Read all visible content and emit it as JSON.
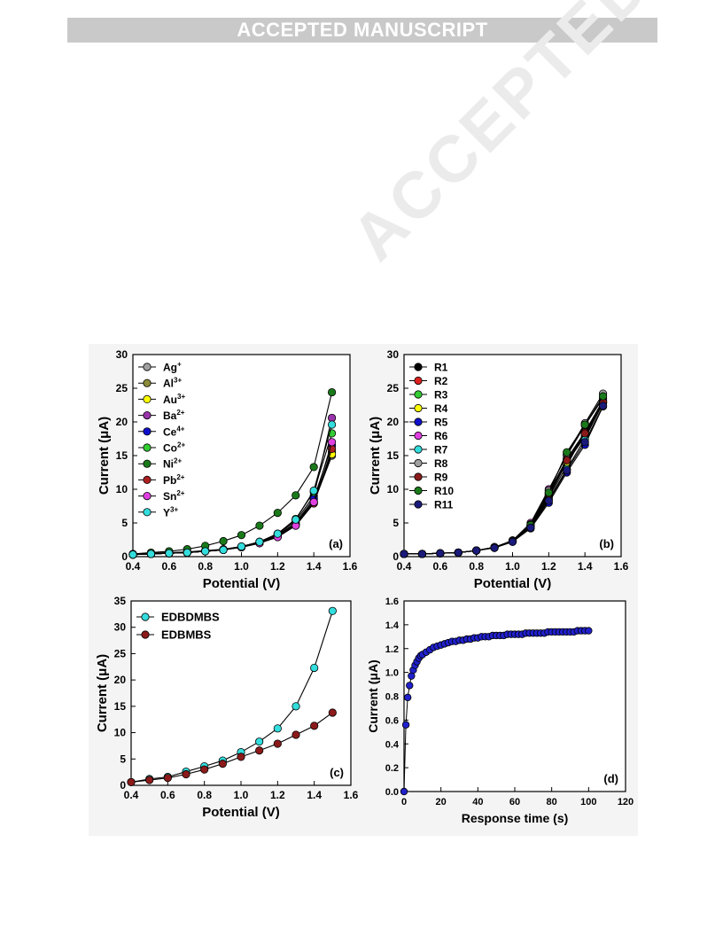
{
  "banner": {
    "text": "ACCEPTED MANUSCRIPT"
  },
  "watermark": {
    "text": "ACCEPTED MANUSCRIPT"
  },
  "chart_data": [
    {
      "id": "a",
      "type": "line",
      "panel_label": "(a)",
      "xlabel": "Potential (V)",
      "ylabel": "Current (μA)",
      "xlim": [
        0.4,
        1.6
      ],
      "ylim": [
        0,
        30
      ],
      "xticks": [
        0.4,
        0.6,
        0.8,
        1.0,
        1.2,
        1.4,
        1.6
      ],
      "yticks": [
        0,
        5,
        10,
        15,
        20,
        25,
        30
      ],
      "legend_position": "top-left",
      "x": [
        0.4,
        0.5,
        0.6,
        0.7,
        0.8,
        0.9,
        1.0,
        1.1,
        1.2,
        1.3,
        1.4,
        1.5
      ],
      "series": [
        {
          "name": "Ag",
          "sup": "+",
          "color": "#a0a0a0",
          "values": [
            0.3,
            0.4,
            0.5,
            0.6,
            0.8,
            1.0,
            1.4,
            2.0,
            3.0,
            4.8,
            8.0,
            15.0
          ]
        },
        {
          "name": "Al",
          "sup": "3+",
          "color": "#8b8b3a",
          "values": [
            0.3,
            0.4,
            0.5,
            0.6,
            0.8,
            1.0,
            1.4,
            2.1,
            3.1,
            4.9,
            8.3,
            15.5
          ]
        },
        {
          "name": "Au",
          "sup": "3+",
          "color": "#ffff00",
          "values": [
            0.3,
            0.4,
            0.5,
            0.6,
            0.8,
            1.0,
            1.4,
            2.0,
            3.0,
            4.7,
            8.0,
            15.2
          ]
        },
        {
          "name": "Ba",
          "sup": "2+",
          "color": "#9933aa",
          "values": [
            0.4,
            0.5,
            0.6,
            0.7,
            0.9,
            1.1,
            1.5,
            2.2,
            3.3,
            5.3,
            9.0,
            20.6
          ]
        },
        {
          "name": "Ce",
          "sup": "4+",
          "color": "#1010cc",
          "values": [
            0.3,
            0.4,
            0.5,
            0.6,
            0.8,
            1.0,
            1.4,
            2.1,
            3.2,
            5.0,
            8.6,
            16.5
          ]
        },
        {
          "name": "Co",
          "sup": "2+",
          "color": "#33cc33",
          "values": [
            0.3,
            0.4,
            0.5,
            0.6,
            0.8,
            1.0,
            1.5,
            2.2,
            3.4,
            5.6,
            9.6,
            18.3
          ]
        },
        {
          "name": "Ni",
          "sup": "2+",
          "color": "#1a7a1a",
          "values": [
            0.4,
            0.6,
            0.8,
            1.1,
            1.6,
            2.3,
            3.2,
            4.6,
            6.5,
            9.1,
            13.3,
            24.4
          ]
        },
        {
          "name": "Pb",
          "sup": "2+",
          "color": "#aa2020",
          "values": [
            0.3,
            0.4,
            0.5,
            0.6,
            0.8,
            1.0,
            1.4,
            2.0,
            3.0,
            4.6,
            7.9,
            16.0
          ]
        },
        {
          "name": "Sn",
          "sup": "2+",
          "color": "#e040e0",
          "values": [
            0.3,
            0.4,
            0.5,
            0.6,
            0.8,
            1.0,
            1.4,
            2.0,
            2.9,
            4.6,
            8.1,
            17.0
          ]
        },
        {
          "name": "Y",
          "sup": "3+",
          "color": "#33dddd",
          "values": [
            0.3,
            0.4,
            0.5,
            0.6,
            0.8,
            1.0,
            1.5,
            2.2,
            3.4,
            5.5,
            9.8,
            19.6
          ]
        }
      ]
    },
    {
      "id": "b",
      "type": "line",
      "panel_label": "(b)",
      "xlabel": "Potential (V)",
      "ylabel": "Current (μA)",
      "xlim": [
        0.4,
        1.6
      ],
      "ylim": [
        0,
        30
      ],
      "xticks": [
        0.4,
        0.6,
        0.8,
        1.0,
        1.2,
        1.4,
        1.6
      ],
      "yticks": [
        0,
        5,
        10,
        15,
        20,
        25,
        30
      ],
      "legend_position": "top-left",
      "x": [
        0.4,
        0.5,
        0.6,
        0.7,
        0.8,
        0.9,
        1.0,
        1.1,
        1.2,
        1.3,
        1.4,
        1.5
      ],
      "series": [
        {
          "name": "R1",
          "color": "#000000",
          "values": [
            0.4,
            0.4,
            0.5,
            0.6,
            0.9,
            1.4,
            2.3,
            4.5,
            8.8,
            13.5,
            18.5,
            23.0
          ]
        },
        {
          "name": "R2",
          "color": "#dd2020",
          "values": [
            0.4,
            0.4,
            0.5,
            0.6,
            0.9,
            1.4,
            2.3,
            4.6,
            9.5,
            14.5,
            18.5,
            23.2
          ]
        },
        {
          "name": "R3",
          "color": "#33cc33",
          "values": [
            0.4,
            0.4,
            0.5,
            0.6,
            0.9,
            1.4,
            2.3,
            4.6,
            9.2,
            14.2,
            18.0,
            23.0
          ]
        },
        {
          "name": "R4",
          "color": "#ffff00",
          "values": [
            0.4,
            0.4,
            0.5,
            0.6,
            0.9,
            1.4,
            2.3,
            4.7,
            9.0,
            14.0,
            17.8,
            22.8
          ]
        },
        {
          "name": "R5",
          "color": "#1010cc",
          "values": [
            0.4,
            0.4,
            0.5,
            0.6,
            0.9,
            1.3,
            2.2,
            4.2,
            8.0,
            12.5,
            16.6,
            22.3
          ]
        },
        {
          "name": "R6",
          "color": "#e040e0",
          "values": [
            0.4,
            0.4,
            0.5,
            0.6,
            0.9,
            1.4,
            2.4,
            5.0,
            10.0,
            15.0,
            19.5,
            23.5
          ]
        },
        {
          "name": "R7",
          "color": "#33dddd",
          "values": [
            0.4,
            0.4,
            0.5,
            0.6,
            0.9,
            1.4,
            2.3,
            4.5,
            8.5,
            13.0,
            17.5,
            22.8
          ]
        },
        {
          "name": "R8",
          "color": "#a0a0a0",
          "values": [
            0.4,
            0.4,
            0.5,
            0.6,
            0.9,
            1.4,
            2.4,
            4.8,
            9.8,
            15.2,
            19.8,
            24.2
          ]
        },
        {
          "name": "R9",
          "color": "#8b1a1a",
          "values": [
            0.4,
            0.4,
            0.5,
            0.6,
            0.9,
            1.4,
            2.3,
            4.6,
            9.3,
            14.3,
            18.3,
            23.0
          ]
        },
        {
          "name": "R10",
          "color": "#1a7a1a",
          "values": [
            0.4,
            0.4,
            0.5,
            0.6,
            0.9,
            1.4,
            2.3,
            4.7,
            9.5,
            15.5,
            19.6,
            23.8
          ]
        },
        {
          "name": "R11",
          "color": "#1a1a7a",
          "values": [
            0.4,
            0.4,
            0.5,
            0.6,
            0.9,
            1.3,
            2.2,
            4.3,
            8.3,
            12.8,
            17.0,
            22.4
          ]
        }
      ]
    },
    {
      "id": "c",
      "type": "line",
      "panel_label": "(c)",
      "xlabel": "Potential (V)",
      "ylabel": "Current (μA)",
      "xlim": [
        0.4,
        1.6
      ],
      "ylim": [
        0,
        35
      ],
      "xticks": [
        0.4,
        0.6,
        0.8,
        1.0,
        1.2,
        1.4,
        1.6
      ],
      "yticks": [
        0,
        5,
        10,
        15,
        20,
        25,
        30,
        35
      ],
      "legend_position": "top-left",
      "x": [
        0.4,
        0.5,
        0.6,
        0.7,
        0.8,
        0.9,
        1.0,
        1.1,
        1.2,
        1.3,
        1.4,
        1.5
      ],
      "series": [
        {
          "name": "EDBDMBS",
          "color": "#33dddd",
          "values": [
            0.6,
            1.2,
            1.6,
            2.6,
            3.6,
            4.7,
            6.3,
            8.3,
            10.8,
            15.0,
            22.3,
            33.1
          ]
        },
        {
          "name": "EDBMBS",
          "color": "#8b1a1a",
          "values": [
            0.6,
            1.0,
            1.4,
            2.1,
            3.0,
            4.1,
            5.4,
            6.6,
            7.9,
            9.6,
            11.3,
            13.8
          ]
        }
      ]
    },
    {
      "id": "d",
      "type": "scatter",
      "panel_label": "(d)",
      "xlabel": "Response time (s)",
      "ylabel": "Current (μA)",
      "xlim": [
        0,
        120
      ],
      "ylim": [
        0.0,
        1.6
      ],
      "xticks": [
        0,
        20,
        40,
        60,
        80,
        100,
        120
      ],
      "yticks": [
        0.0,
        0.2,
        0.4,
        0.6,
        0.8,
        1.0,
        1.2,
        1.4,
        1.6
      ],
      "series": [
        {
          "name": "",
          "color": "#2020cc",
          "shape": "1.35*(1-exp(-t/3.5)) + 0.12*(1-exp(-t/40)) (fitted approximation of plotted points)",
          "x": [
            0,
            1,
            2,
            3,
            4,
            5,
            6,
            7,
            8,
            9,
            10,
            12,
            14,
            16,
            18,
            20,
            22,
            24,
            26,
            28,
            30,
            32,
            34,
            36,
            38,
            40,
            42,
            44,
            46,
            48,
            50,
            52,
            54,
            56,
            58,
            60,
            62,
            64,
            66,
            68,
            70,
            72,
            74,
            76,
            78,
            80,
            82,
            84,
            86,
            88,
            90,
            92,
            94,
            96,
            98,
            100
          ],
          "values": [
            0.0,
            0.56,
            0.79,
            0.89,
            0.97,
            1.02,
            1.06,
            1.09,
            1.12,
            1.14,
            1.15,
            1.17,
            1.19,
            1.21,
            1.22,
            1.23,
            1.24,
            1.25,
            1.26,
            1.26,
            1.27,
            1.27,
            1.28,
            1.28,
            1.29,
            1.29,
            1.3,
            1.3,
            1.3,
            1.31,
            1.31,
            1.31,
            1.31,
            1.32,
            1.32,
            1.32,
            1.32,
            1.32,
            1.33,
            1.33,
            1.33,
            1.33,
            1.33,
            1.33,
            1.34,
            1.34,
            1.34,
            1.34,
            1.34,
            1.34,
            1.34,
            1.34,
            1.35,
            1.35,
            1.35,
            1.35
          ]
        }
      ]
    }
  ]
}
